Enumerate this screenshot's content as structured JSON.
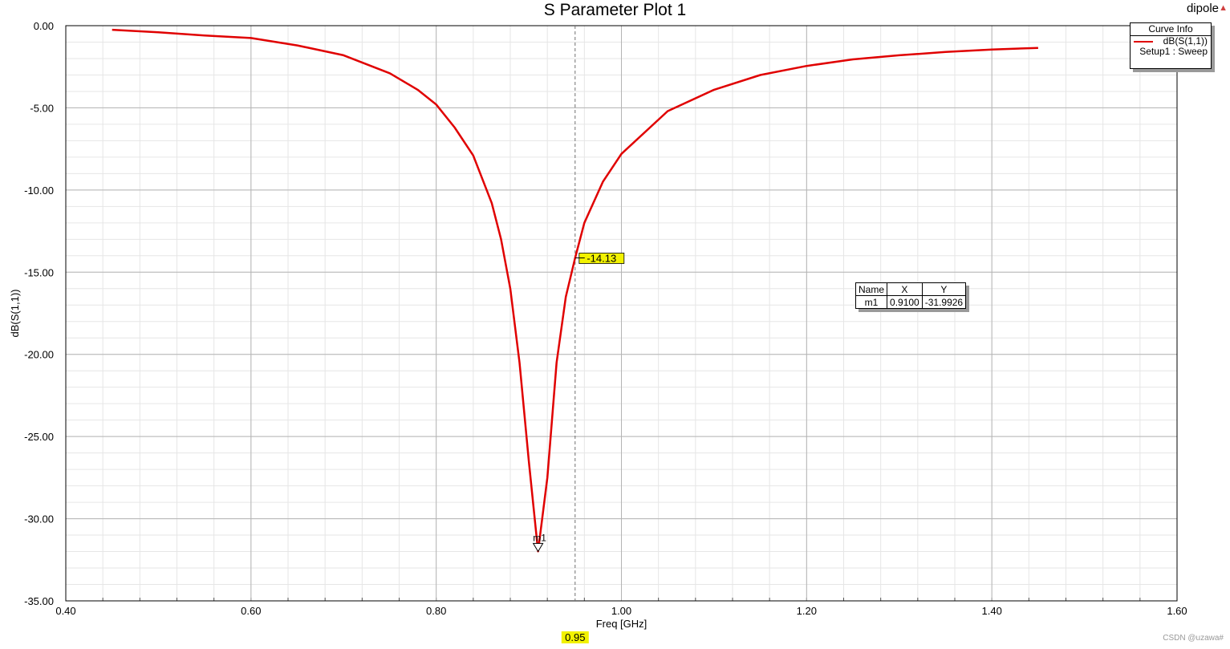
{
  "window": {
    "project_name": "dipole",
    "project_icon": "collapse-arrow-icon",
    "watermark": "CSDN @uzawa#"
  },
  "curve_info": {
    "header": "Curve Info",
    "curve_name": "dB(S(1,1))",
    "setup": "Setup1 : Sweep",
    "curve_color": "#e00000"
  },
  "marker_table": {
    "headers": [
      "Name",
      "X",
      "Y"
    ],
    "rows": [
      [
        "m1",
        "0.9100",
        "-31.9926"
      ]
    ]
  },
  "chart_data": {
    "type": "line",
    "title": "S Parameter Plot 1",
    "xlabel": "Freq [GHz]",
    "ylabel": "dB(S(1,1))",
    "xlim": [
      0.4,
      1.6
    ],
    "ylim": [
      -35,
      0
    ],
    "x_ticks": [
      0.4,
      0.6,
      0.8,
      1.0,
      1.2,
      1.4,
      1.6
    ],
    "x_tick_labels": [
      "0.40",
      "0.60",
      "0.80",
      "1.00",
      "1.20",
      "1.40",
      "1.60"
    ],
    "y_ticks": [
      0,
      -5,
      -10,
      -15,
      -20,
      -25,
      -30,
      -35
    ],
    "y_tick_labels": [
      "0.00",
      "-5.00",
      "-10.00",
      "-15.00",
      "-20.00",
      "-25.00",
      "-30.00",
      "-35.00"
    ],
    "grid": true,
    "series": [
      {
        "name": "dB(S(1,1))",
        "color": "#e00000",
        "x": [
          0.45,
          0.5,
          0.55,
          0.6,
          0.65,
          0.7,
          0.75,
          0.78,
          0.8,
          0.82,
          0.84,
          0.86,
          0.87,
          0.88,
          0.89,
          0.9,
          0.91,
          0.92,
          0.93,
          0.94,
          0.95,
          0.96,
          0.98,
          1.0,
          1.05,
          1.1,
          1.15,
          1.2,
          1.25,
          1.3,
          1.35,
          1.4,
          1.45
        ],
        "y": [
          -0.25,
          -0.4,
          -0.6,
          -0.75,
          -1.2,
          -1.8,
          -2.9,
          -3.9,
          -4.8,
          -6.2,
          -7.9,
          -10.8,
          -13.0,
          -16.0,
          -20.5,
          -26.5,
          -31.99,
          -27.5,
          -20.5,
          -16.5,
          -14.13,
          -12.0,
          -9.5,
          -7.8,
          -5.2,
          -3.9,
          -3.0,
          -2.45,
          -2.05,
          -1.8,
          -1.6,
          -1.45,
          -1.35
        ]
      }
    ],
    "markers": [
      {
        "name": "m1",
        "x": 0.91,
        "y": -31.9926
      }
    ],
    "cursor": {
      "x": 0.95,
      "x_label": "0.95",
      "y_value": -14.13,
      "y_label": "-14.13"
    }
  }
}
